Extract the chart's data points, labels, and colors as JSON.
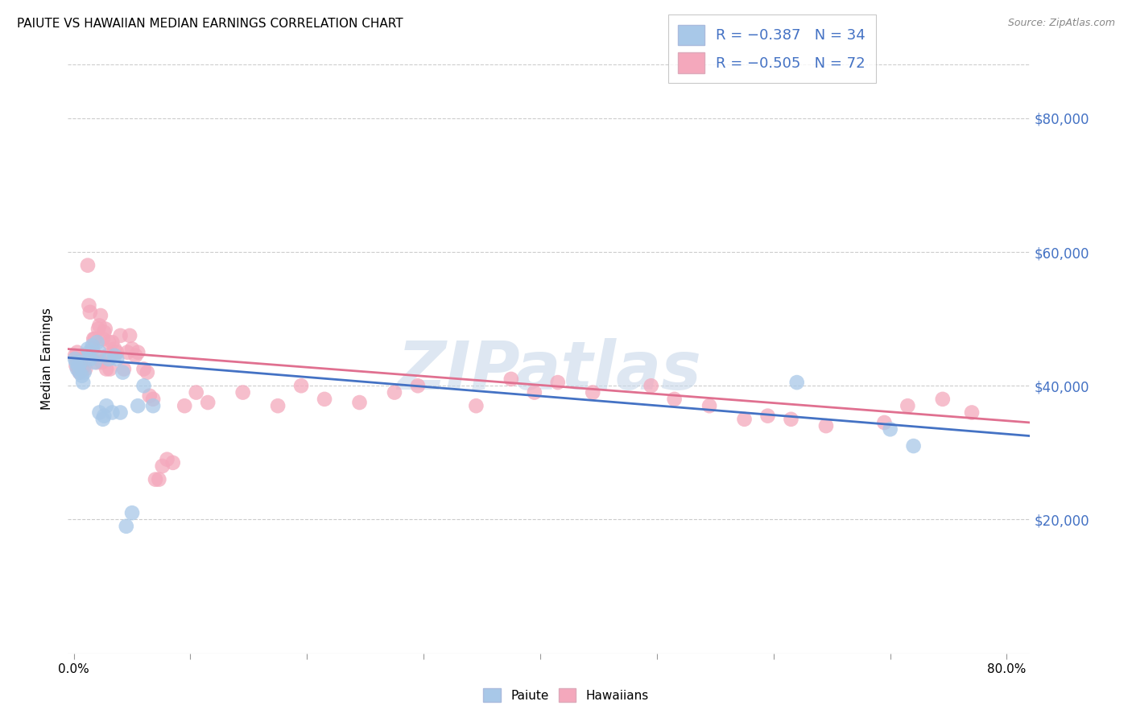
{
  "title": "PAIUTE VS HAWAIIAN MEDIAN EARNINGS CORRELATION CHART",
  "source": "Source: ZipAtlas.com",
  "ylabel": "Median Earnings",
  "ytick_labels": [
    "$20,000",
    "$40,000",
    "$60,000",
    "$80,000"
  ],
  "ytick_values": [
    20000,
    40000,
    60000,
    80000
  ],
  "ylim": [
    0,
    88000
  ],
  "xlim": [
    -0.005,
    0.82
  ],
  "paiute_color": "#a8c8e8",
  "hawaiian_color": "#f4a8bc",
  "line_paiute_color": "#4472c4",
  "line_hawaiian_color": "#e07090",
  "watermark": "ZIPatlas",
  "watermark_color": "#c8d8ea",
  "paiute_points": [
    [
      0.001,
      44000
    ],
    [
      0.002,
      43500
    ],
    [
      0.003,
      42500
    ],
    [
      0.004,
      43000
    ],
    [
      0.005,
      42000
    ],
    [
      0.006,
      43500
    ],
    [
      0.007,
      41500
    ],
    [
      0.008,
      40500
    ],
    [
      0.009,
      42000
    ],
    [
      0.012,
      45500
    ],
    [
      0.013,
      45000
    ],
    [
      0.014,
      44000
    ],
    [
      0.016,
      46000
    ],
    [
      0.018,
      43500
    ],
    [
      0.02,
      46500
    ],
    [
      0.022,
      45000
    ],
    [
      0.022,
      36000
    ],
    [
      0.025,
      35000
    ],
    [
      0.026,
      35500
    ],
    [
      0.028,
      37000
    ],
    [
      0.03,
      44000
    ],
    [
      0.033,
      36000
    ],
    [
      0.035,
      44500
    ],
    [
      0.037,
      44000
    ],
    [
      0.04,
      36000
    ],
    [
      0.042,
      42000
    ],
    [
      0.045,
      19000
    ],
    [
      0.05,
      21000
    ],
    [
      0.055,
      37000
    ],
    [
      0.06,
      40000
    ],
    [
      0.068,
      37000
    ],
    [
      0.62,
      40500
    ],
    [
      0.7,
      33500
    ],
    [
      0.72,
      31000
    ]
  ],
  "hawaiian_points": [
    [
      0.001,
      44500
    ],
    [
      0.002,
      43000
    ],
    [
      0.003,
      45000
    ],
    [
      0.004,
      42500
    ],
    [
      0.005,
      42000
    ],
    [
      0.006,
      43500
    ],
    [
      0.007,
      42500
    ],
    [
      0.008,
      44000
    ],
    [
      0.009,
      43000
    ],
    [
      0.01,
      42500
    ],
    [
      0.012,
      58000
    ],
    [
      0.013,
      52000
    ],
    [
      0.014,
      51000
    ],
    [
      0.016,
      45500
    ],
    [
      0.017,
      47000
    ],
    [
      0.018,
      47000
    ],
    [
      0.019,
      44500
    ],
    [
      0.02,
      43500
    ],
    [
      0.021,
      48500
    ],
    [
      0.022,
      49000
    ],
    [
      0.023,
      50500
    ],
    [
      0.024,
      43500
    ],
    [
      0.025,
      47000
    ],
    [
      0.026,
      48000
    ],
    [
      0.027,
      48500
    ],
    [
      0.028,
      42500
    ],
    [
      0.029,
      44500
    ],
    [
      0.03,
      46500
    ],
    [
      0.031,
      42500
    ],
    [
      0.033,
      46500
    ],
    [
      0.035,
      45500
    ],
    [
      0.037,
      45000
    ],
    [
      0.04,
      47500
    ],
    [
      0.043,
      42500
    ],
    [
      0.046,
      45000
    ],
    [
      0.048,
      47500
    ],
    [
      0.05,
      45500
    ],
    [
      0.053,
      44500
    ],
    [
      0.055,
      45000
    ],
    [
      0.06,
      42500
    ],
    [
      0.063,
      42000
    ],
    [
      0.065,
      38500
    ],
    [
      0.068,
      38000
    ],
    [
      0.07,
      26000
    ],
    [
      0.073,
      26000
    ],
    [
      0.076,
      28000
    ],
    [
      0.08,
      29000
    ],
    [
      0.085,
      28500
    ],
    [
      0.095,
      37000
    ],
    [
      0.105,
      39000
    ],
    [
      0.115,
      37500
    ],
    [
      0.145,
      39000
    ],
    [
      0.175,
      37000
    ],
    [
      0.195,
      40000
    ],
    [
      0.215,
      38000
    ],
    [
      0.245,
      37500
    ],
    [
      0.275,
      39000
    ],
    [
      0.295,
      40000
    ],
    [
      0.345,
      37000
    ],
    [
      0.375,
      41000
    ],
    [
      0.395,
      39000
    ],
    [
      0.415,
      40500
    ],
    [
      0.445,
      39000
    ],
    [
      0.495,
      40000
    ],
    [
      0.515,
      38000
    ],
    [
      0.545,
      37000
    ],
    [
      0.575,
      35000
    ],
    [
      0.595,
      35500
    ],
    [
      0.615,
      35000
    ],
    [
      0.645,
      34000
    ],
    [
      0.695,
      34500
    ],
    [
      0.715,
      37000
    ],
    [
      0.745,
      38000
    ],
    [
      0.77,
      36000
    ]
  ],
  "paiute_line": {
    "x0": -0.005,
    "y0": 44200,
    "x1": 0.82,
    "y1": 32500
  },
  "hawaiian_line": {
    "x0": -0.005,
    "y0": 45500,
    "x1": 0.82,
    "y1": 34500
  },
  "background_color": "#ffffff",
  "grid_color": "#cccccc",
  "title_fontsize": 11,
  "axis_label_color": "#4472c4",
  "legend_text_color": "#4472c4"
}
